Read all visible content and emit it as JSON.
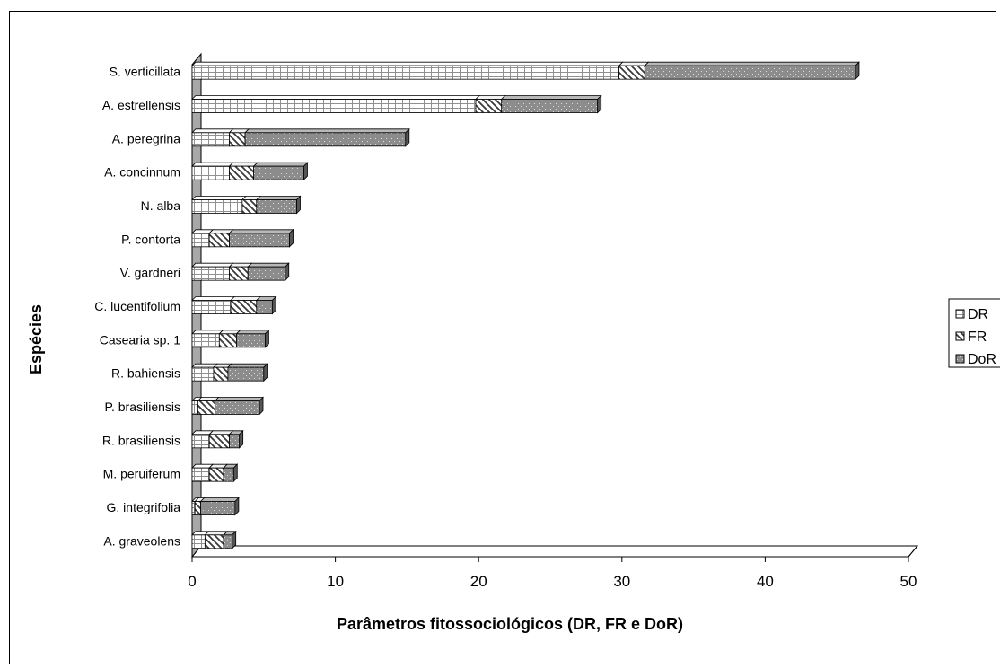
{
  "chart_data": {
    "type": "bar",
    "orientation": "horizontal",
    "stacked": true,
    "style": "3d",
    "xlabel": "Parâmetros fitossociológicos (DR, FR e DoR)",
    "ylabel": "Espécies",
    "xlim": [
      0,
      50
    ],
    "xticks": [
      "0",
      "10",
      "20",
      "30",
      "40",
      "50"
    ],
    "legend_position": "right",
    "categories": [
      "S. verticillata",
      "A. estrellensis",
      "A. peregrina",
      "A. concinnum",
      "N. alba",
      "P. contorta",
      "V. gardneri",
      "C. lucentifolium",
      "Casearia sp. 1",
      "R. bahiensis",
      "P. brasiliensis",
      "R. brasiliensis",
      "M. peruiferum",
      "G. integrifolia",
      "A. graveolens"
    ],
    "series": [
      {
        "name": "DR",
        "pattern": "grid",
        "values": [
          29.8,
          19.8,
          2.6,
          2.6,
          3.5,
          1.2,
          2.6,
          2.7,
          1.9,
          1.5,
          0.4,
          1.2,
          1.2,
          0.2,
          0.9
        ]
      },
      {
        "name": "FR",
        "pattern": "diagonal",
        "values": [
          1.8,
          1.8,
          1.1,
          1.7,
          1.0,
          1.4,
          1.3,
          1.8,
          1.2,
          1.0,
          1.2,
          1.4,
          1.0,
          0.4,
          1.3
        ]
      },
      {
        "name": "DoR",
        "pattern": "dots",
        "values": [
          14.7,
          6.7,
          11.2,
          3.5,
          2.8,
          4.2,
          2.6,
          1.1,
          2.0,
          2.5,
          3.1,
          0.7,
          0.7,
          2.4,
          0.6
        ]
      }
    ]
  }
}
